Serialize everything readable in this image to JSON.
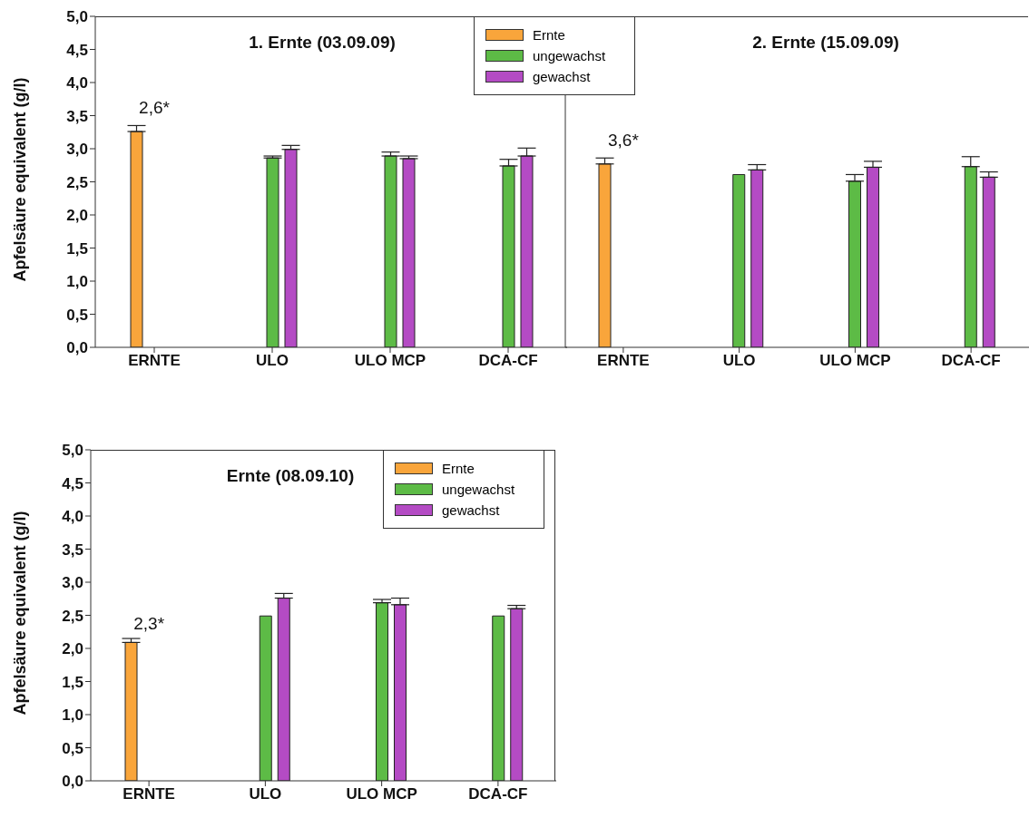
{
  "chart_data": [
    {
      "type": "bar",
      "title": "1. Ernte (03.09.09)",
      "ylabel": "Apfelsäure equivalent (g/l)",
      "categories": [
        "ERNTE",
        "ULO",
        "ULO MCP",
        "DCA-CF"
      ],
      "series": [
        {
          "name": "Ernte",
          "color": "#f9a53b",
          "values": [
            3.26,
            null,
            null,
            null
          ],
          "errors": [
            [
              3.26,
              3.35
            ],
            null,
            null,
            null
          ]
        },
        {
          "name": "ungewachst",
          "color": "#5dbb46",
          "values": [
            null,
            2.86,
            2.89,
            2.74
          ],
          "errors": [
            null,
            [
              2.86,
              2.89
            ],
            [
              2.89,
              2.95
            ],
            [
              2.74,
              2.84
            ]
          ]
        },
        {
          "name": "gewachst",
          "color": "#b44bc4",
          "values": [
            null,
            2.99,
            2.85,
            2.89
          ],
          "errors": [
            null,
            [
              2.99,
              3.05
            ],
            [
              2.85,
              2.89
            ],
            [
              2.89,
              3.01
            ]
          ]
        }
      ],
      "ylim": [
        0,
        5
      ],
      "yticks": [
        {
          "value": 0,
          "label": "0,0"
        },
        {
          "value": 0.5,
          "label": "0,5"
        },
        {
          "value": 1,
          "label": "1,0"
        },
        {
          "value": 1.5,
          "label": "1,5"
        },
        {
          "value": 2,
          "label": "2,0"
        },
        {
          "value": 2.5,
          "label": "2,5"
        },
        {
          "value": 3,
          "label": "3,0"
        },
        {
          "value": 3.5,
          "label": "3,5"
        },
        {
          "value": 4,
          "label": "4,0"
        },
        {
          "value": 4.5,
          "label": "4,5"
        },
        {
          "value": 5,
          "label": "5,0"
        }
      ],
      "annotations": [
        "2,6*"
      ],
      "legend": "top right"
    },
    {
      "type": "bar",
      "title": "2. Ernte (15.09.09)",
      "categories": [
        "ERNTE",
        "ULO",
        "ULO MCP",
        "DCA-CF"
      ],
      "series": [
        {
          "color": "#f9a53b",
          "values": [
            2.77,
            null,
            null,
            null
          ],
          "errors": [
            [
              2.77,
              2.86
            ],
            null,
            null,
            null
          ]
        },
        {
          "color": "#5dbb46",
          "values": [
            null,
            2.61,
            2.51,
            2.73
          ],
          "errors": [
            null,
            null,
            [
              2.51,
              2.61
            ],
            [
              2.73,
              2.88
            ]
          ]
        },
        {
          "color": "#b44bc4",
          "values": [
            null,
            2.68,
            2.72,
            2.57
          ],
          "errors": [
            null,
            [
              2.68,
              2.76
            ],
            [
              2.72,
              2.81
            ],
            [
              2.57,
              2.65
            ]
          ]
        }
      ],
      "ylim": [
        0,
        5
      ],
      "tick_labels": "x",
      "annotations": [
        "3,6*"
      ],
      "legend": false
    },
    {
      "type": "bar",
      "title": "Ernte (08.09.10)",
      "ylabel": "Apfelsäure equivalent (g/l)",
      "categories": [
        "ERNTE",
        "ULO",
        "ULO MCP",
        "DCA-CF"
      ],
      "series": [
        {
          "name": "Ernte",
          "color": "#f9a53b",
          "values": [
            2.09,
            null,
            null,
            null
          ],
          "errors": [
            [
              2.09,
              2.15
            ],
            null,
            null,
            null
          ]
        },
        {
          "name": "ungewachst",
          "color": "#5dbb46",
          "values": [
            null,
            2.49,
            2.69,
            2.49
          ],
          "errors": [
            null,
            null,
            [
              2.69,
              2.74
            ],
            null
          ]
        },
        {
          "name": "gewachst",
          "color": "#b44bc4",
          "values": [
            null,
            2.76,
            2.66,
            2.6
          ],
          "errors": [
            null,
            [
              2.76,
              2.83
            ],
            [
              2.66,
              2.76
            ],
            [
              2.6,
              2.65
            ]
          ]
        }
      ],
      "ylim": [
        0,
        5
      ],
      "yticks": [
        {
          "value": 0,
          "label": "0,0"
        },
        {
          "value": 0.5,
          "label": "0,5"
        },
        {
          "value": 1,
          "label": "1,0"
        },
        {
          "value": 1.5,
          "label": "1,5"
        },
        {
          "value": 2,
          "label": "2,0"
        },
        {
          "value": 2.5,
          "label": "2,5"
        },
        {
          "value": 3,
          "label": "3,0"
        },
        {
          "value": 3.5,
          "label": "3,5"
        },
        {
          "value": 4,
          "label": "4,0"
        },
        {
          "value": 4.5,
          "label": "4,5"
        },
        {
          "value": 5,
          "label": "5,0"
        }
      ],
      "annotations": [
        "2,3*"
      ],
      "legend": "top right"
    }
  ]
}
